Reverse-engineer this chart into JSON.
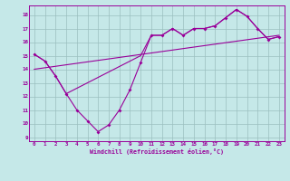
{
  "xlabel": "Windchill (Refroidissement éolien,°C)",
  "background_color": "#c5e8e8",
  "grid_color": "#9bbfbf",
  "line_color": "#990099",
  "xlim": [
    -0.5,
    23.5
  ],
  "ylim": [
    8.7,
    18.7
  ],
  "xticks": [
    0,
    1,
    2,
    3,
    4,
    5,
    6,
    7,
    8,
    9,
    10,
    11,
    12,
    13,
    14,
    15,
    16,
    17,
    18,
    19,
    20,
    21,
    22,
    23
  ],
  "yticks": [
    9,
    10,
    11,
    12,
    13,
    14,
    15,
    16,
    17,
    18
  ],
  "line1_x": [
    0,
    1,
    2,
    3,
    4,
    5,
    6,
    7,
    8,
    9,
    10,
    11,
    12,
    13,
    14,
    15,
    16,
    17,
    18,
    19,
    20,
    21,
    22,
    23
  ],
  "line1_y": [
    15.1,
    14.6,
    13.5,
    12.2,
    11.0,
    10.2,
    9.4,
    9.9,
    11.0,
    12.5,
    14.5,
    16.5,
    16.5,
    17.0,
    16.5,
    17.0,
    17.0,
    17.2,
    17.8,
    18.4,
    17.9,
    17.0,
    16.2,
    16.4
  ],
  "line2_x": [
    0,
    1,
    2,
    3,
    10,
    11,
    12,
    13,
    14,
    15,
    16,
    17,
    18,
    19,
    20,
    21,
    22,
    23
  ],
  "line2_y": [
    15.1,
    14.6,
    13.5,
    12.2,
    15.0,
    16.5,
    16.5,
    17.0,
    16.5,
    17.0,
    17.0,
    17.2,
    17.8,
    18.4,
    17.9,
    17.0,
    16.2,
    16.4
  ],
  "line3_x": [
    0,
    23
  ],
  "line3_y": [
    14.0,
    16.5
  ]
}
